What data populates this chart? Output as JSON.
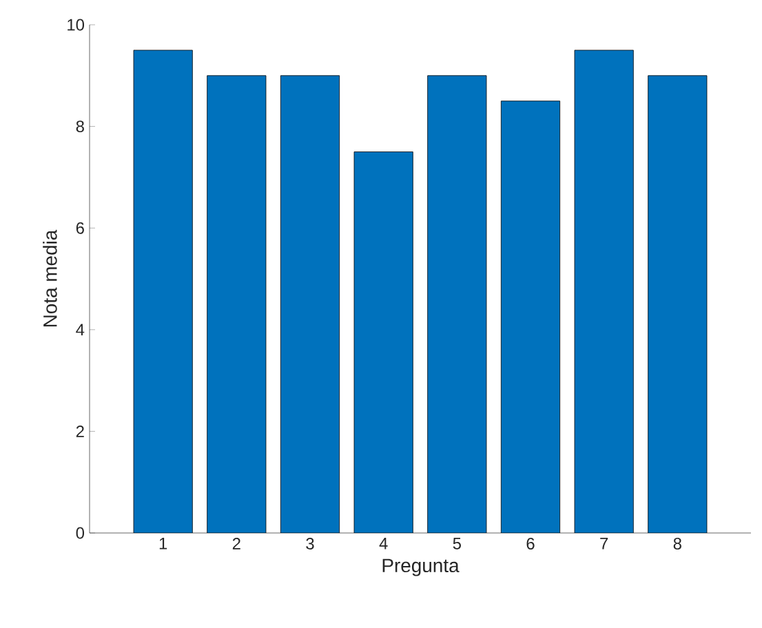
{
  "chart_data": {
    "type": "bar",
    "xlabel": "Pregunta",
    "ylabel": "Nota media",
    "categories": [
      "1",
      "2",
      "3",
      "4",
      "5",
      "6",
      "7",
      "8"
    ],
    "values": [
      9.5,
      9,
      9,
      7.5,
      9,
      8.5,
      9.5,
      9
    ],
    "color": "#0072bd",
    "ylim": [
      0,
      10
    ],
    "yticks": [
      0,
      2,
      4,
      6,
      8,
      10
    ]
  }
}
